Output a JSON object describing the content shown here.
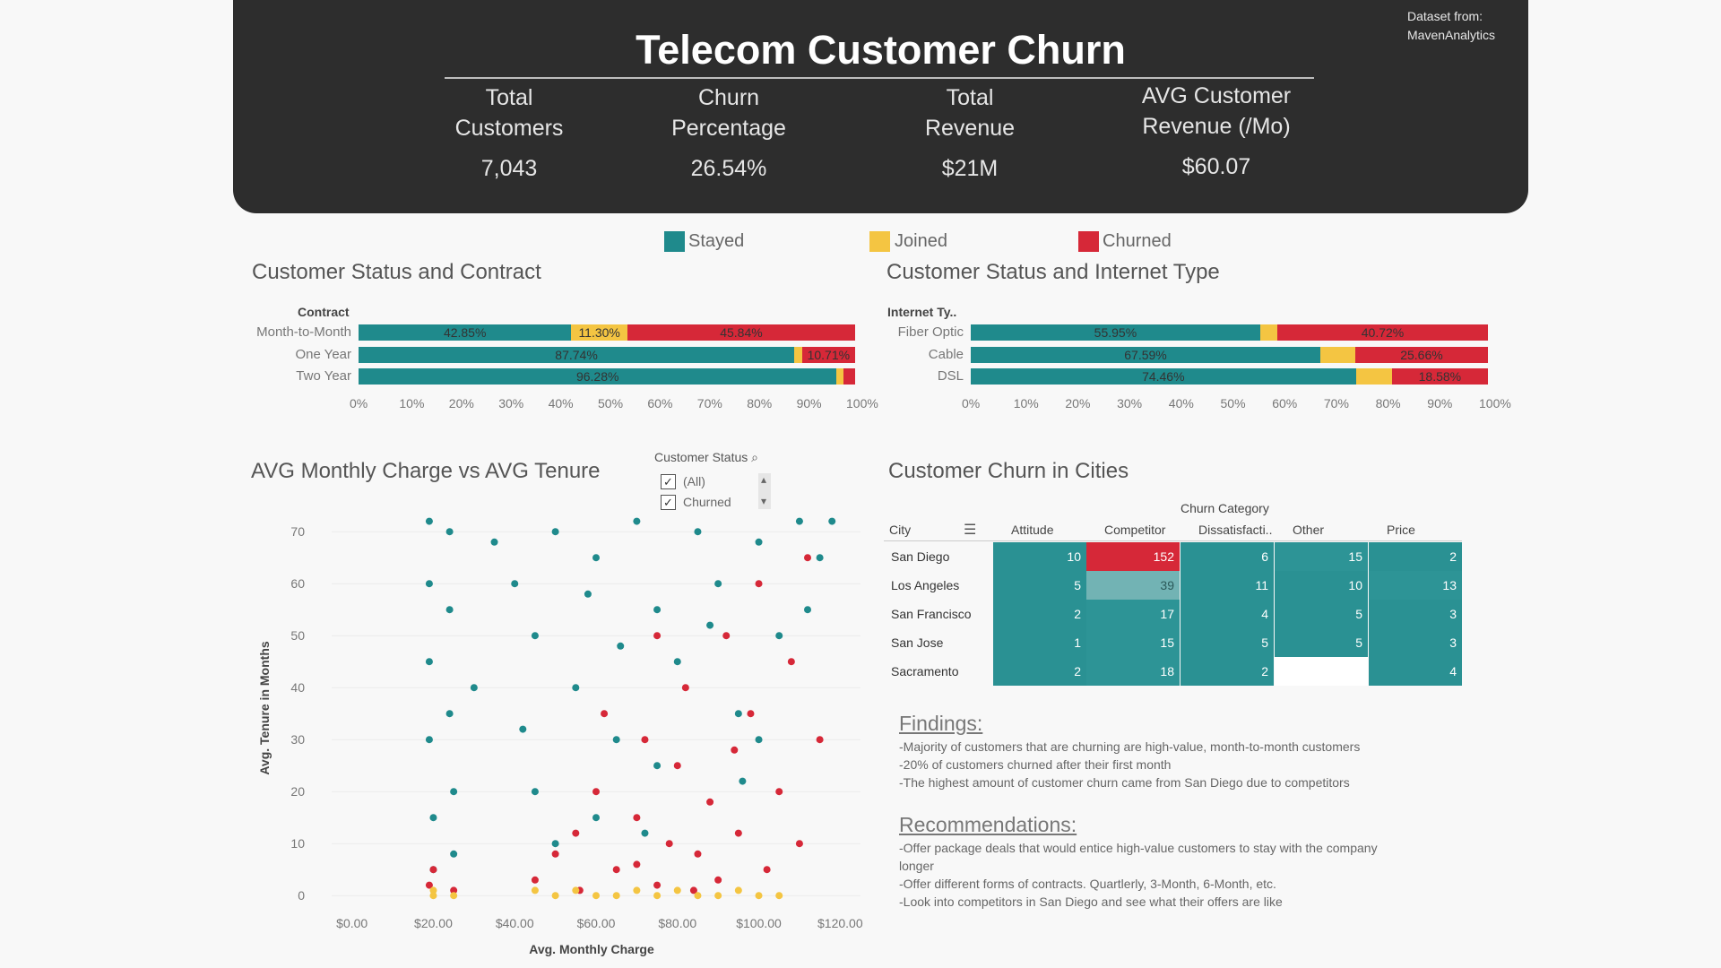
{
  "header": {
    "title": "Telecom Customer Churn",
    "credit": "Dataset from:\nMavenAnalytics",
    "kpis": [
      {
        "label": "Total\nCustomers",
        "value": "7,043"
      },
      {
        "label": "Churn\nPercentage",
        "value": "26.54%"
      },
      {
        "label": "Total\nRevenue",
        "value": "$21M"
      },
      {
        "label": "AVG Customer\nRevenue (/Mo)",
        "value": "$60.07"
      }
    ]
  },
  "legend": [
    {
      "label": "Stayed",
      "color": "#1f8a8c"
    },
    {
      "label": "Joined",
      "color": "#f4c542"
    },
    {
      "label": "Churned",
      "color": "#d62838"
    }
  ],
  "contract_chart": {
    "title": "Customer Status and Contract",
    "axis_title": "Contract",
    "ticks": [
      "0%",
      "10%",
      "20%",
      "30%",
      "40%",
      "50%",
      "60%",
      "70%",
      "80%",
      "90%",
      "100%"
    ]
  },
  "internet_chart": {
    "title": "Customer Status and Internet Type",
    "axis_title": "Internet Ty..",
    "ticks": [
      "0%",
      "10%",
      "20%",
      "30%",
      "40%",
      "50%",
      "60%",
      "70%",
      "80%",
      "90%",
      "100%"
    ]
  },
  "scatter": {
    "title": "AVG Monthly Charge vs AVG Tenure",
    "xlabel": "Avg. Monthly Charge",
    "ylabel": "Avg. Tenure in Months",
    "xticks": [
      "$0.00",
      "$20.00",
      "$40.00",
      "$60.00",
      "$80.00",
      "$100.00",
      "$120.00"
    ],
    "yticks": [
      "0",
      "10",
      "20",
      "30",
      "40",
      "50",
      "60",
      "70"
    ]
  },
  "filter": {
    "title": "Customer Status",
    "options": [
      {
        "label": "(All)",
        "checked": true
      },
      {
        "label": "Churned",
        "checked": true
      }
    ]
  },
  "cities": {
    "title": "Customer Churn in Cities",
    "group_header": "Churn Category",
    "city_header": "City",
    "columns": [
      "Attitude",
      "Competitor",
      "Dissatisfacti..",
      "Other",
      "Price"
    ],
    "rows": [
      {
        "city": "San Diego",
        "values": [
          "10",
          "152",
          "6",
          "15",
          "2"
        ]
      },
      {
        "city": "Los Angeles",
        "values": [
          "5",
          "39",
          "11",
          "10",
          "13"
        ]
      },
      {
        "city": "San Francisco",
        "values": [
          "2",
          "17",
          "4",
          "5",
          "3"
        ]
      },
      {
        "city": "San Jose",
        "values": [
          "1",
          "15",
          "5",
          "5",
          "3"
        ]
      },
      {
        "city": "Sacramento",
        "values": [
          "2",
          "18",
          "2",
          "",
          "4"
        ]
      }
    ]
  },
  "findings": {
    "heading": "Findings:",
    "lines": [
      "-Majority of customers that are churning are high-value, month-to-month customers",
      "-20% of customers churned after their first month",
      "-The highest amount of customer churn came from San Diego due to competitors"
    ]
  },
  "recommendations": {
    "heading": "Recommendations:",
    "lines": [
      "-Offer package deals that would entice high-value customers to stay with the company",
      "longer",
      "-Offer different forms of contracts. Quartlerly, 3-Month, 6-Month, etc.",
      "-Look into competitors in San Diego and see what their offers are like"
    ]
  },
  "chart_data": [
    {
      "type": "bar",
      "title": "Customer Status and Contract",
      "stacked": true,
      "categories": [
        "Month-to-Month",
        "One Year",
        "Two Year"
      ],
      "series": [
        {
          "name": "Stayed",
          "values": [
            42.85,
            87.74,
            96.28
          ],
          "labels": [
            "42.85%",
            "87.74%",
            "96.28%"
          ]
        },
        {
          "name": "Joined",
          "values": [
            11.3,
            1.55,
            1.4
          ],
          "labels": [
            "11.30%",
            "",
            ""
          ]
        },
        {
          "name": "Churned",
          "values": [
            45.84,
            10.71,
            2.32
          ],
          "labels": [
            "45.84%",
            "10.71%",
            ""
          ]
        }
      ],
      "xlim": [
        0,
        100
      ]
    },
    {
      "type": "bar",
      "title": "Customer Status and Internet Type",
      "stacked": true,
      "categories": [
        "Fiber Optic",
        "Cable",
        "DSL"
      ],
      "series": [
        {
          "name": "Stayed",
          "values": [
            55.95,
            67.59,
            74.46
          ],
          "labels": [
            "55.95%",
            "67.59%",
            "74.46%"
          ]
        },
        {
          "name": "Joined",
          "values": [
            3.33,
            6.75,
            6.96
          ],
          "labels": [
            "",
            "",
            ""
          ]
        },
        {
          "name": "Churned",
          "values": [
            40.72,
            25.66,
            18.58
          ],
          "labels": [
            "40.72%",
            "25.66%",
            "18.58%"
          ]
        }
      ],
      "xlim": [
        0,
        100
      ]
    },
    {
      "type": "scatter",
      "title": "AVG Monthly Charge vs AVG Tenure",
      "xlabel": "Avg. Monthly Charge",
      "ylabel": "Avg. Tenure in Months",
      "xlim": [
        -5,
        125
      ],
      "ylim": [
        -1,
        74
      ],
      "series": [
        {
          "name": "Stayed",
          "points": [
            [
              19,
              72
            ],
            [
              19,
              60
            ],
            [
              19,
              45
            ],
            [
              19,
              30
            ],
            [
              20,
              15
            ],
            [
              20,
              5
            ],
            [
              24,
              70
            ],
            [
              24,
              55
            ],
            [
              24,
              35
            ],
            [
              25,
              20
            ],
            [
              25,
              8
            ],
            [
              35,
              68
            ],
            [
              40,
              60
            ],
            [
              45,
              50
            ],
            [
              50,
              70
            ],
            [
              55,
              40
            ],
            [
              60,
              65
            ],
            [
              65,
              30
            ],
            [
              70,
              72
            ],
            [
              75,
              55
            ],
            [
              80,
              45
            ],
            [
              85,
              70
            ],
            [
              90,
              60
            ],
            [
              95,
              35
            ],
            [
              100,
              68
            ],
            [
              105,
              50
            ],
            [
              110,
              72
            ],
            [
              115,
              65
            ],
            [
              118,
              72
            ],
            [
              45,
              20
            ],
            [
              60,
              15
            ],
            [
              75,
              25
            ],
            [
              50,
              10
            ],
            [
              30,
              40
            ],
            [
              100,
              30
            ],
            [
              112,
              55
            ],
            [
              66,
              48
            ],
            [
              88,
              52
            ],
            [
              58,
              58
            ],
            [
              72,
              12
            ],
            [
              42,
              32
            ],
            [
              96,
              22
            ]
          ]
        },
        {
          "name": "Churned",
          "points": [
            [
              19,
              2
            ],
            [
              20,
              5
            ],
            [
              25,
              1
            ],
            [
              45,
              3
            ],
            [
              50,
              8
            ],
            [
              55,
              12
            ],
            [
              60,
              20
            ],
            [
              65,
              5
            ],
            [
              70,
              15
            ],
            [
              72,
              30
            ],
            [
              75,
              2
            ],
            [
              78,
              10
            ],
            [
              80,
              25
            ],
            [
              82,
              40
            ],
            [
              85,
              8
            ],
            [
              88,
              18
            ],
            [
              90,
              3
            ],
            [
              92,
              50
            ],
            [
              95,
              12
            ],
            [
              98,
              35
            ],
            [
              100,
              60
            ],
            [
              102,
              5
            ],
            [
              105,
              20
            ],
            [
              108,
              45
            ],
            [
              110,
              10
            ],
            [
              112,
              65
            ],
            [
              115,
              30
            ],
            [
              75,
              50
            ],
            [
              70,
              6
            ],
            [
              84,
              1
            ],
            [
              94,
              28
            ],
            [
              62,
              35
            ],
            [
              56,
              1
            ]
          ]
        },
        {
          "name": "Joined",
          "points": [
            [
              20,
              0
            ],
            [
              20,
              1
            ],
            [
              25,
              0
            ],
            [
              45,
              1
            ],
            [
              50,
              0
            ],
            [
              55,
              1
            ],
            [
              60,
              0
            ],
            [
              65,
              0
            ],
            [
              70,
              1
            ],
            [
              75,
              0
            ],
            [
              80,
              1
            ],
            [
              85,
              0
            ],
            [
              90,
              0
            ],
            [
              95,
              1
            ],
            [
              100,
              0
            ],
            [
              105,
              0
            ]
          ]
        }
      ]
    },
    {
      "type": "heatmap",
      "title": "Customer Churn in Cities",
      "x": [
        "Attitude",
        "Competitor",
        "Dissatisfacti..",
        "Other",
        "Price"
      ],
      "y": [
        "San Diego",
        "Los Angeles",
        "San Francisco",
        "San Jose",
        "Sacramento"
      ],
      "values": [
        [
          10,
          152,
          6,
          15,
          2
        ],
        [
          5,
          39,
          11,
          10,
          13
        ],
        [
          2,
          17,
          4,
          5,
          3
        ],
        [
          1,
          15,
          5,
          5,
          3
        ],
        [
          2,
          18,
          2,
          null,
          4
        ]
      ]
    }
  ]
}
